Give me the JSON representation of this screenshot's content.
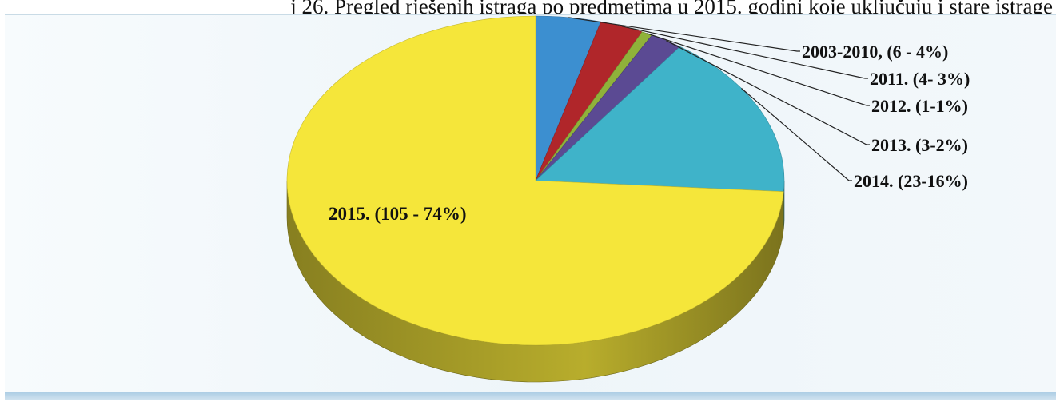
{
  "caption": "j 26. Pregled rješenih istraga po predmetima u 2015. godini koje uključuju i stare istrage",
  "chart_data": {
    "type": "pie",
    "title": "",
    "three_d": true,
    "slices": [
      {
        "label": "2003-2010, (6 - 4%)",
        "category": "2003-2010",
        "value": 6,
        "percent": 4,
        "color": "#3c8fd0"
      },
      {
        "label": "2011. (4- 3%)",
        "category": "2011.",
        "value": 4,
        "percent": 3,
        "color": "#b0262a"
      },
      {
        "label": "2012. (1-1%)",
        "category": "2012.",
        "value": 1,
        "percent": 1,
        "color": "#8fb23a"
      },
      {
        "label": "2013. (3-2%)",
        "category": "2013.",
        "value": 3,
        "percent": 2,
        "color": "#5b4a93"
      },
      {
        "label": "2014. (23-16%)",
        "category": "2014.",
        "value": 23,
        "percent": 16,
        "color": "#3fb3c9"
      },
      {
        "label": "2015. (105 - 74%)",
        "category": "2015.",
        "value": 105,
        "percent": 74,
        "color": "#f5e63a"
      }
    ]
  }
}
